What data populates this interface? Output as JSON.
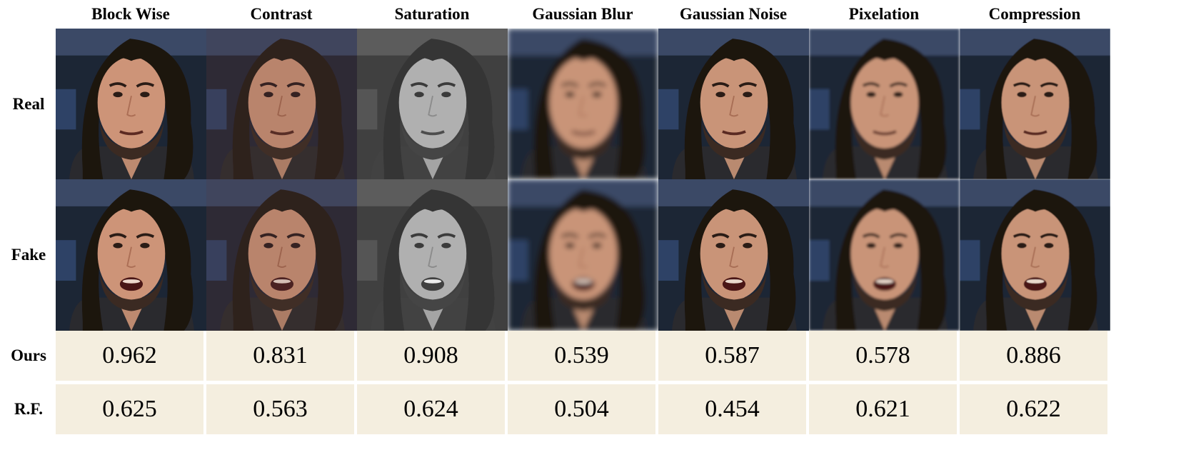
{
  "columns": [
    {
      "label": "Block Wise"
    },
    {
      "label": "Contrast"
    },
    {
      "label": "Saturation"
    },
    {
      "label": "Gaussian Blur"
    },
    {
      "label": "Gaussian Noise"
    },
    {
      "label": "Pixelation"
    },
    {
      "label": "Compression"
    }
  ],
  "rows": {
    "real": "Real",
    "fake": "Fake",
    "ours": "Ours",
    "rf": "R.F."
  },
  "scores": {
    "ours": [
      "0.962",
      "0.831",
      "0.908",
      "0.539",
      "0.587",
      "0.578",
      "0.886"
    ],
    "rf": [
      "0.625",
      "0.563",
      "0.624",
      "0.504",
      "0.454",
      "0.621",
      "0.622"
    ]
  },
  "colors": {
    "score_cell_bg": "#f4eedf",
    "image_background": "#1d2536",
    "hair": "#1b130f",
    "skin": "#c99478",
    "shirt": "#2a2a2e"
  },
  "image_treatments": [
    "blockwise",
    "contrast",
    "grayscale",
    "blur",
    "noise",
    "pixelate",
    "compress"
  ]
}
